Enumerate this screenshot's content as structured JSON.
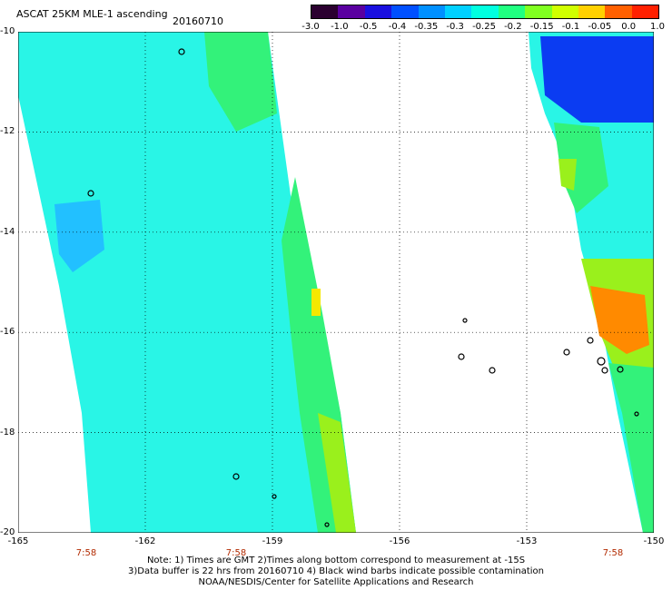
{
  "header": {
    "title": "ASCAT 25KM MLE-1 ascending",
    "date": "20160710"
  },
  "colorbar": {
    "labels": [
      "-3.0",
      "-1.0",
      "-0.5",
      "-0.4",
      "-0.35",
      "-0.3",
      "-0.25",
      "-0.2",
      "-0.15",
      "-0.1",
      "-0.05",
      "0.0",
      "1.0"
    ],
    "colors": [
      "#2b0030",
      "#5a00a0",
      "#1a10e0",
      "#0050ff",
      "#0090ff",
      "#00d0ff",
      "#00ffe0",
      "#20ff80",
      "#80ff20",
      "#d0ff00",
      "#ffd000",
      "#ff6000",
      "#ff2000"
    ]
  },
  "map": {
    "y_labels": [
      "-10",
      "-12",
      "-14",
      "-16",
      "-18",
      "-20"
    ],
    "x_labels": [
      "-165",
      "-162",
      "-159",
      "-156",
      "-153",
      "-150"
    ],
    "time_labels": [
      "7:58",
      "7:58",
      "7:58"
    ],
    "colors": {
      "cyan": "#29f5e6",
      "green": "#33f27a",
      "lime": "#9af01c",
      "yellow": "#f5e800",
      "orange": "#ff8a00",
      "blue": "#0b3cf2",
      "lightblue": "#22c0ff"
    }
  },
  "notes": [
    "Note: 1) Times are GMT 2)Times along bottom correspond to measurement at -15S",
    "3)Data buffer is 22 hrs from 20160710 4) Black wind barbs indicate possible contamination",
    "NOAA/NESDIS/Center for Satellite Applications and Research"
  ]
}
